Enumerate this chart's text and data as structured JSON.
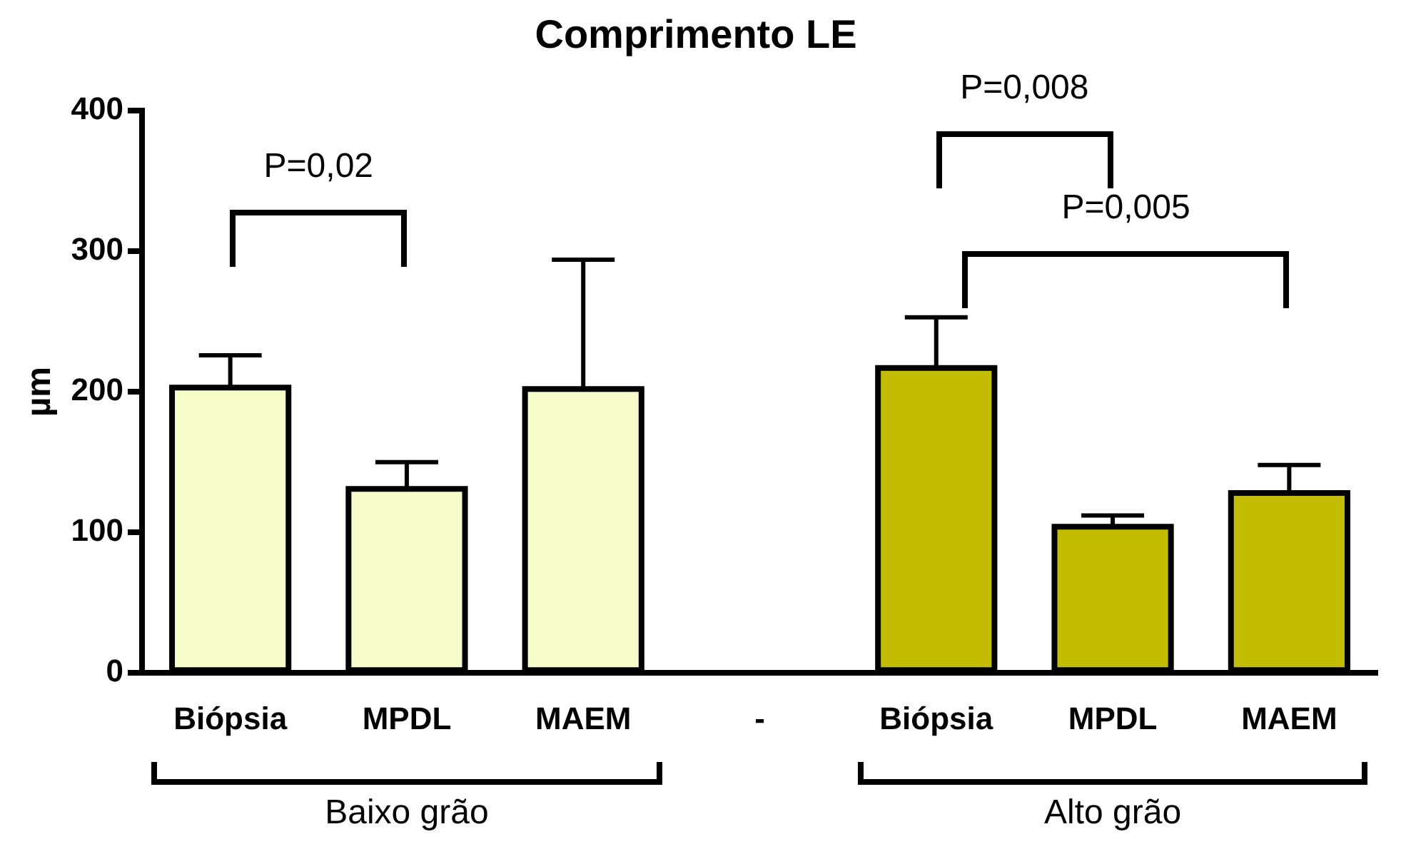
{
  "chart_data": {
    "type": "bar",
    "title": "Comprimento LE",
    "ylabel": "µm",
    "categories": [
      "Biópsia",
      "MPDL",
      "MAEM",
      "-",
      "Biópsia",
      "MPDL",
      "MAEM"
    ],
    "values": [
      203,
      131,
      202,
      null,
      217,
      104,
      128
    ],
    "colors": [
      "#f7fdc9",
      "#f7fdc9",
      "#f7fdc9",
      "#f7fdc9",
      "#c2bd00",
      "#c2bd00",
      "#c2bd00"
    ],
    "errors": [
      [
        203,
        226
      ],
      [
        131,
        150
      ],
      [
        202,
        294
      ],
      null,
      [
        217,
        253
      ],
      [
        104,
        112
      ],
      [
        128,
        148
      ]
    ],
    "ylim": [
      0,
      400
    ],
    "yticks": [
      0,
      100,
      200,
      300,
      400
    ],
    "annotations": [
      "P=0,02",
      "P=0,008",
      "P=0,005",
      "Baixo grão",
      "Alto grão"
    ]
  }
}
